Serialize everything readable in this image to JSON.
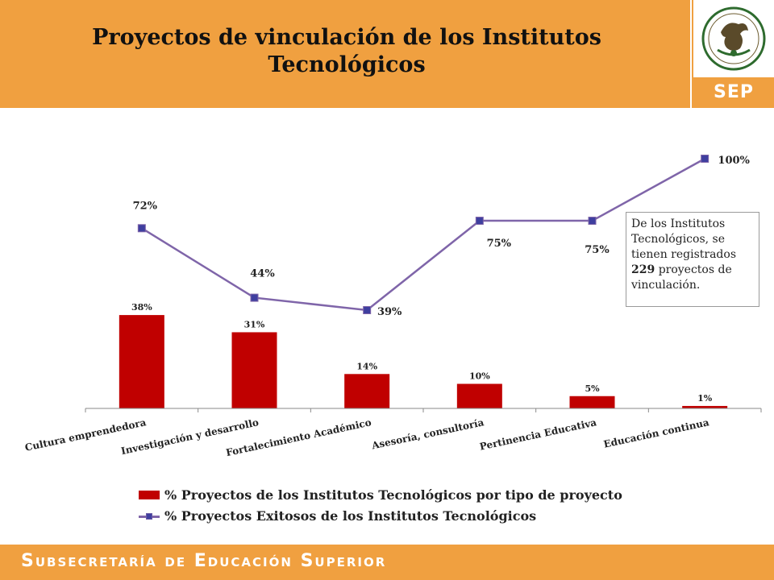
{
  "header": {
    "title": "Proyectos de vinculación de los Institutos Tecnológicos",
    "logo_label": "SEP",
    "seal_text": "ESTADOS UNIDOS MEXICANOS"
  },
  "footer": {
    "text": "Subsecretaría de Educación Superior"
  },
  "note": {
    "line1": "De los Institutos Tecnológicos, se tienen registrados",
    "highlight": "229",
    "line2": "proyectos de vinculación."
  },
  "colors": {
    "header_bg": "#F0A040",
    "bar": "#C00000",
    "line": "#7F65A9",
    "marker": "#3F3F9F"
  },
  "chart_data": {
    "type": "bar",
    "categories": [
      "Cultura emprendedora",
      "Investigación y desarrollo",
      "Fortalecimiento Académico",
      "Asesoría, consultoría",
      "Pertinencia Educativa",
      "Educación continua"
    ],
    "series": [
      {
        "name": "% Proyectos de los Institutos Tecnológicos por tipo de proyecto",
        "type": "bar",
        "values": [
          38,
          31,
          14,
          10,
          5,
          1
        ],
        "labels": [
          "38%",
          "31%",
          "14%",
          "10%",
          "5%",
          "1%"
        ]
      },
      {
        "name": "% Proyectos Exitosos de los Institutos Tecnológicos",
        "type": "line",
        "values": [
          72,
          44,
          39,
          75,
          75,
          100
        ],
        "labels": [
          "72%",
          "44%",
          "39%",
          "75%",
          "75%",
          "100%"
        ]
      }
    ],
    "ylim": [
      0,
      100
    ],
    "grid": false,
    "legend": "bottom"
  }
}
